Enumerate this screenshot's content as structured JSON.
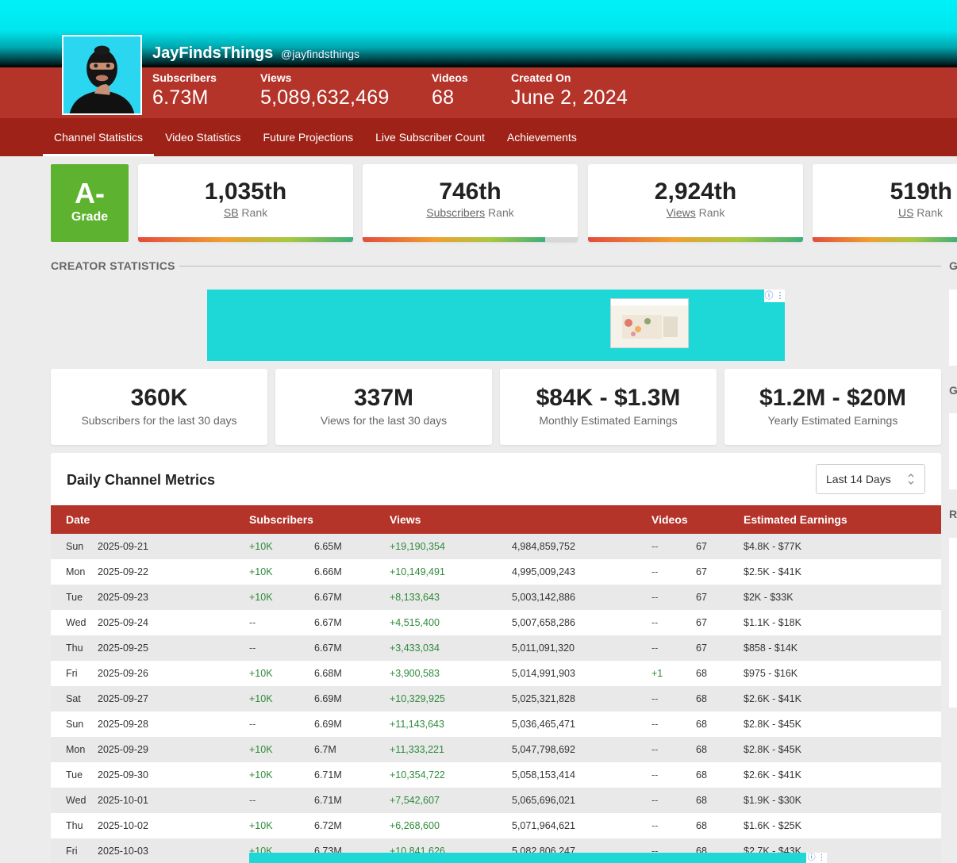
{
  "channel": {
    "name": "JayFindsThings",
    "handle": "@jayfindsthings",
    "stats": [
      {
        "label": "Subscribers",
        "value": "6.73M"
      },
      {
        "label": "Views",
        "value": "5,089,632,469"
      },
      {
        "label": "Videos",
        "value": "68"
      },
      {
        "label": "Created On",
        "value": "June 2, 2024"
      }
    ]
  },
  "nav": [
    "Channel Statistics",
    "Video Statistics",
    "Future Projections",
    "Live Subscriber Count",
    "Achievements"
  ],
  "grade": {
    "value": "A-",
    "label": "Grade"
  },
  "ranks": [
    {
      "value": "1,035th",
      "link": "SB",
      "suffix": " Rank",
      "fill": 1.0
    },
    {
      "value": "746th",
      "link": "Subscribers",
      "suffix": " Rank",
      "fill": 0.85
    },
    {
      "value": "2,924th",
      "link": "Views",
      "suffix": " Rank",
      "fill": 1.0
    },
    {
      "value": "519th",
      "link": "US",
      "suffix": " Rank",
      "fill": 1.0
    }
  ],
  "section_title": "CREATOR STATISTICS",
  "ad_info": "ⓘ ⋮",
  "summary": [
    {
      "value": "360K",
      "label": "Subscribers for the last 30 days"
    },
    {
      "value": "337M",
      "label": "Views for the last 30 days"
    },
    {
      "value": "$84K - $1.3M",
      "label": "Monthly Estimated Earnings"
    },
    {
      "value": "$1.2M - $20M",
      "label": "Yearly Estimated Earnings"
    }
  ],
  "metrics": {
    "title": "Daily Channel Metrics",
    "range": "Last 14 Days",
    "headers": [
      "Date",
      "Subscribers",
      "Views",
      "Videos",
      "Estimated Earnings"
    ],
    "rows": [
      {
        "day": "Sun",
        "date": "2025-09-21",
        "sub_delta": "+10K",
        "subs": "6.65M",
        "view_delta": "+19,190,354",
        "views": "4,984,859,752",
        "vid_delta": "--",
        "videos": "67",
        "earnings": "$4.8K - $77K"
      },
      {
        "day": "Mon",
        "date": "2025-09-22",
        "sub_delta": "+10K",
        "subs": "6.66M",
        "view_delta": "+10,149,491",
        "views": "4,995,009,243",
        "vid_delta": "--",
        "videos": "67",
        "earnings": "$2.5K - $41K"
      },
      {
        "day": "Tue",
        "date": "2025-09-23",
        "sub_delta": "+10K",
        "subs": "6.67M",
        "view_delta": "+8,133,643",
        "views": "5,003,142,886",
        "vid_delta": "--",
        "videos": "67",
        "earnings": "$2K - $33K"
      },
      {
        "day": "Wed",
        "date": "2025-09-24",
        "sub_delta": "--",
        "subs": "6.67M",
        "view_delta": "+4,515,400",
        "views": "5,007,658,286",
        "vid_delta": "--",
        "videos": "67",
        "earnings": "$1.1K - $18K"
      },
      {
        "day": "Thu",
        "date": "2025-09-25",
        "sub_delta": "--",
        "subs": "6.67M",
        "view_delta": "+3,433,034",
        "views": "5,011,091,320",
        "vid_delta": "--",
        "videos": "67",
        "earnings": "$858 - $14K"
      },
      {
        "day": "Fri",
        "date": "2025-09-26",
        "sub_delta": "+10K",
        "subs": "6.68M",
        "view_delta": "+3,900,583",
        "views": "5,014,991,903",
        "vid_delta": "+1",
        "videos": "68",
        "earnings": "$975 - $16K"
      },
      {
        "day": "Sat",
        "date": "2025-09-27",
        "sub_delta": "+10K",
        "subs": "6.69M",
        "view_delta": "+10,329,925",
        "views": "5,025,321,828",
        "vid_delta": "--",
        "videos": "68",
        "earnings": "$2.6K - $41K"
      },
      {
        "day": "Sun",
        "date": "2025-09-28",
        "sub_delta": "--",
        "subs": "6.69M",
        "view_delta": "+11,143,643",
        "views": "5,036,465,471",
        "vid_delta": "--",
        "videos": "68",
        "earnings": "$2.8K - $45K"
      },
      {
        "day": "Mon",
        "date": "2025-09-29",
        "sub_delta": "+10K",
        "subs": "6.7M",
        "view_delta": "+11,333,221",
        "views": "5,047,798,692",
        "vid_delta": "--",
        "videos": "68",
        "earnings": "$2.8K - $45K"
      },
      {
        "day": "Tue",
        "date": "2025-09-30",
        "sub_delta": "+10K",
        "subs": "6.71M",
        "view_delta": "+10,354,722",
        "views": "5,058,153,414",
        "vid_delta": "--",
        "videos": "68",
        "earnings": "$2.6K - $41K"
      },
      {
        "day": "Wed",
        "date": "2025-10-01",
        "sub_delta": "--",
        "subs": "6.71M",
        "view_delta": "+7,542,607",
        "views": "5,065,696,021",
        "vid_delta": "--",
        "videos": "68",
        "earnings": "$1.9K - $30K"
      },
      {
        "day": "Thu",
        "date": "2025-10-02",
        "sub_delta": "+10K",
        "subs": "6.72M",
        "view_delta": "+6,268,600",
        "views": "5,071,964,621",
        "vid_delta": "--",
        "videos": "68",
        "earnings": "$1.6K - $25K"
      },
      {
        "day": "Fri",
        "date": "2025-10-03",
        "sub_delta": "+10K",
        "subs": "6.73M",
        "view_delta": "+10,841,626",
        "views": "5,082,806,247",
        "vid_delta": "--",
        "videos": "68",
        "earnings": "$2.7K - $43K"
      }
    ]
  },
  "right_column_letters": [
    "G",
    "G",
    "R"
  ]
}
